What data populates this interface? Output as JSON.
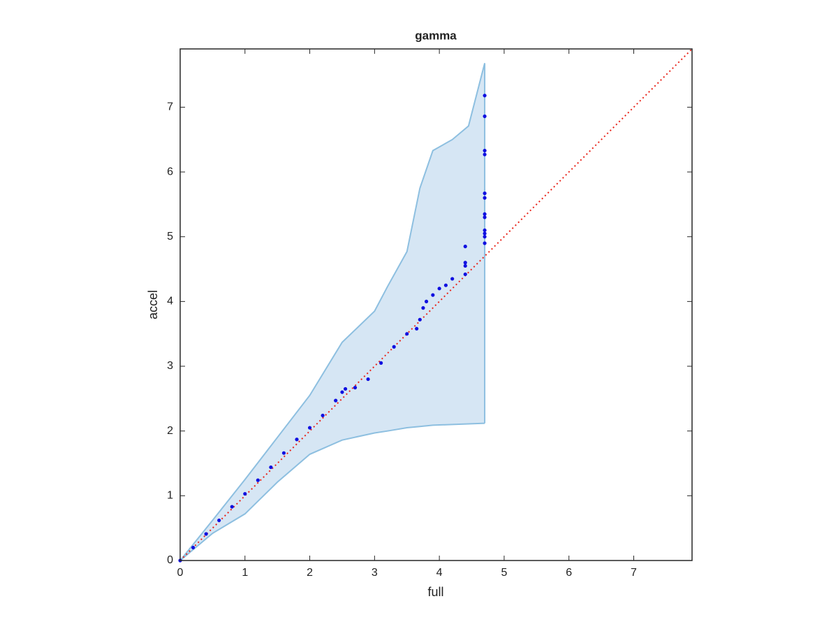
{
  "chart_data": {
    "type": "qq",
    "title": "gamma",
    "x_label": "full",
    "y_label": "accel",
    "xlim": [
      0,
      7.9
    ],
    "ylim": [
      0,
      7.9
    ],
    "xticks": [
      0,
      1,
      2,
      3,
      4,
      5,
      6,
      7
    ],
    "yticks": [
      0,
      1,
      2,
      3,
      4,
      5,
      6,
      7
    ],
    "band": {
      "color": "#d6e6f4",
      "edge_color": "#8dbfe0",
      "x": [
        0,
        0.5,
        1,
        1.5,
        2,
        2.5,
        3,
        3.2,
        3.5,
        3.7,
        3.9,
        4.2,
        4.45,
        4.7
      ],
      "upper": [
        0,
        0.62,
        1.25,
        1.9,
        2.55,
        3.37,
        3.85,
        4.23,
        4.77,
        5.75,
        6.33,
        6.5,
        6.71,
        7.68
      ],
      "lower": [
        0,
        0.42,
        0.72,
        1.21,
        1.64,
        1.86,
        1.97,
        2.0,
        2.05,
        2.07,
        2.09,
        2.1,
        2.11,
        2.12
      ]
    },
    "reference": {
      "color": "#e8261c",
      "x": [
        0,
        7.9
      ],
      "y": [
        0,
        7.9
      ]
    },
    "points": {
      "color": "#1010e0",
      "x": [
        0,
        0.2,
        0.4,
        0.6,
        0.8,
        1.0,
        1.2,
        1.4,
        1.6,
        1.8,
        2.0,
        2.2,
        2.4,
        2.5,
        2.55,
        2.7,
        2.9,
        3.1,
        3.3,
        3.5,
        3.65,
        3.7,
        3.75,
        3.8,
        3.9,
        4.0,
        4.1,
        4.2,
        4.4,
        4.4,
        4.4,
        4.4,
        4.7,
        4.7,
        4.7,
        4.7,
        4.7,
        4.7,
        4.7,
        4.7,
        4.7,
        4.7,
        4.7,
        4.7
      ],
      "y": [
        0,
        0.2,
        0.41,
        0.62,
        0.83,
        1.03,
        1.24,
        1.44,
        1.66,
        1.87,
        2.05,
        2.24,
        2.47,
        2.6,
        2.65,
        2.67,
        2.8,
        3.05,
        3.3,
        3.5,
        3.58,
        3.72,
        3.9,
        4.0,
        4.1,
        4.2,
        4.25,
        4.35,
        4.42,
        4.55,
        4.6,
        4.85,
        4.9,
        5.0,
        5.05,
        5.1,
        5.3,
        5.35,
        5.6,
        5.67,
        6.27,
        6.33,
        6.86,
        7.18
      ]
    }
  }
}
